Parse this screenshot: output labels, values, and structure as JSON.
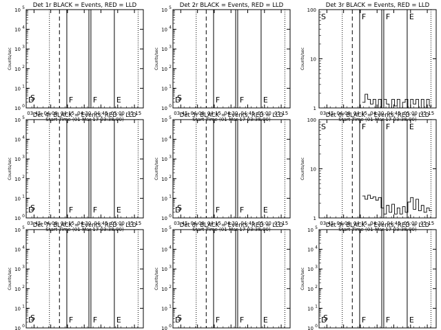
{
  "chart_data": [
    {
      "type": "line",
      "title": "Det 1r BLACK = Events, RED = LLD",
      "xlabel": "Start Time (01-Mar-17 03:38:00)",
      "ylabel": "Counts/sec",
      "scale": "log",
      "yticks": [
        {
          "m": "10",
          "e": "0"
        },
        {
          "m": "10",
          "e": "1"
        },
        {
          "m": "10",
          "e": "2"
        },
        {
          "m": "10",
          "e": "3"
        },
        {
          "m": "10",
          "e": "4"
        },
        {
          "m": "10",
          "e": "5"
        }
      ],
      "xticks": [
        "03:45",
        "04:00",
        "04:15",
        "04:30",
        "04:45",
        "05:00",
        "05:15"
      ],
      "region_labels": [
        "D",
        "F",
        "F",
        "E"
      ],
      "second_label": "S",
      "series": []
    },
    {
      "type": "line",
      "title": "Det 2r BLACK = Events, RED = LLD",
      "xlabel": "Start Time (01-Mar-17 03:38:00)",
      "ylabel": "Counts/sec",
      "scale": "log",
      "yticks": [
        {
          "m": "10",
          "e": "0"
        },
        {
          "m": "10",
          "e": "1"
        },
        {
          "m": "10",
          "e": "2"
        },
        {
          "m": "10",
          "e": "3"
        },
        {
          "m": "10",
          "e": "4"
        },
        {
          "m": "10",
          "e": "5"
        }
      ],
      "xticks": [
        "03:45",
        "04:00",
        "04:15",
        "04:30",
        "04:45",
        "05:00",
        "05:15"
      ],
      "region_labels": [
        "D",
        "F",
        "F",
        "E"
      ],
      "second_label": "S",
      "series": []
    },
    {
      "type": "line",
      "title": "Det 3r BLACK = Events, RED = LLD",
      "xlabel": "Start Time (01-Mar-17 03:38:00)",
      "ylabel": "Counts/sec",
      "scale": "log",
      "yticks": [
        {
          "m": "1",
          "e": ""
        },
        {
          "m": "10",
          "e": ""
        },
        {
          "m": "100",
          "e": ""
        }
      ],
      "xticks": [
        "03:45",
        "04:00",
        "04:15",
        "04:30",
        "04:45",
        "05:00",
        "05:15"
      ],
      "region_labels": [
        "S",
        "F",
        "F",
        "E"
      ],
      "second_label": "",
      "series": [
        {
          "x": [
            4.28,
            4.32,
            4.36,
            4.4,
            4.44,
            4.48,
            4.52,
            4.56,
            4.6,
            4.64,
            4.68,
            4.72,
            4.76,
            4.8,
            4.84,
            4.88,
            4.92,
            4.96,
            5.0,
            5.04,
            5.08,
            5.12,
            5.16,
            5.2,
            5.24,
            5.28
          ],
          "y": [
            1.3,
            1.9,
            1.5,
            1.2,
            1.5,
            1.0,
            1.5,
            1.0,
            1.5,
            1.2,
            1.0,
            1.5,
            1.1,
            1.5,
            1.0,
            1.3,
            1.5,
            1.0,
            1.5,
            1.2,
            1.5,
            1.0,
            1.5,
            1.0,
            1.5,
            1.1
          ]
        }
      ]
    },
    {
      "type": "line",
      "title": "Det 4r BLACK = Events, RED = LLD",
      "xlabel": "Start Time (01-Mar-17 03:38:00)",
      "ylabel": "Counts/sec",
      "scale": "log",
      "yticks": [
        {
          "m": "10",
          "e": "0"
        },
        {
          "m": "10",
          "e": "1"
        },
        {
          "m": "10",
          "e": "2"
        },
        {
          "m": "10",
          "e": "3"
        },
        {
          "m": "10",
          "e": "4"
        },
        {
          "m": "10",
          "e": "5"
        }
      ],
      "xticks": [
        "03:45",
        "04:00",
        "04:15",
        "04:30",
        "04:45",
        "05:00",
        "05:15"
      ],
      "region_labels": [
        "D",
        "F",
        "F",
        "E"
      ],
      "second_label": "S",
      "series": []
    },
    {
      "type": "line",
      "title": "Det 5r BLACK = Events, RED = LLD",
      "xlabel": "Start Time (01-Mar-17 03:38:00)",
      "ylabel": "Counts/sec",
      "scale": "log",
      "yticks": [
        {
          "m": "10",
          "e": "0"
        },
        {
          "m": "10",
          "e": "1"
        },
        {
          "m": "10",
          "e": "2"
        },
        {
          "m": "10",
          "e": "3"
        },
        {
          "m": "10",
          "e": "4"
        },
        {
          "m": "10",
          "e": "5"
        }
      ],
      "xticks": [
        "03:45",
        "04:00",
        "04:15",
        "04:30",
        "04:45",
        "05:00",
        "05:15"
      ],
      "region_labels": [
        "D",
        "F",
        "F",
        "E"
      ],
      "second_label": "S",
      "series": []
    },
    {
      "type": "line",
      "title": "Det 6r BLACK = Events, RED = LLD",
      "xlabel": "Start Time (01-Mar-17 03:38:00)",
      "ylabel": "Counts/sec",
      "scale": "log",
      "yticks": [
        {
          "m": "1",
          "e": ""
        },
        {
          "m": "10",
          "e": ""
        },
        {
          "m": "100",
          "e": ""
        }
      ],
      "xticks": [
        "03:45",
        "04:00",
        "04:15",
        "04:30",
        "04:45",
        "05:00",
        "05:15"
      ],
      "region_labels": [
        "S",
        "F",
        "F",
        "E"
      ],
      "second_label": "",
      "series": [
        {
          "x": [
            4.28,
            4.32,
            4.36,
            4.4,
            4.44,
            4.48,
            4.52,
            4.56,
            4.6,
            4.64,
            4.68,
            4.72,
            4.76,
            4.8,
            4.84,
            4.88,
            4.92,
            4.96,
            5.0,
            5.04,
            5.08,
            5.12,
            5.16,
            5.2,
            5.24,
            5.28
          ],
          "y": [
            2.8,
            2.4,
            2.9,
            2.5,
            2.7,
            2.3,
            2.6,
            1.6,
            1.2,
            1.8,
            1.3,
            1.9,
            1.2,
            1.6,
            1.2,
            1.7,
            1.3,
            2.1,
            2.6,
            1.5,
            2.4,
            1.4,
            1.8,
            1.3,
            1.6,
            1.4
          ]
        }
      ]
    },
    {
      "type": "line",
      "title": "Det 7r BLACK = Events, RED = LLD",
      "xlabel": "Start Time (01-Mar-17 03:38:00)",
      "ylabel": "Counts/sec",
      "scale": "log",
      "yticks": [
        {
          "m": "10",
          "e": "0"
        },
        {
          "m": "10",
          "e": "1"
        },
        {
          "m": "10",
          "e": "2"
        },
        {
          "m": "10",
          "e": "3"
        },
        {
          "m": "10",
          "e": "4"
        },
        {
          "m": "10",
          "e": "5"
        }
      ],
      "xticks": [
        "03:45",
        "04:00",
        "04:15",
        "04:30",
        "04:45",
        "05:00",
        "05:15"
      ],
      "region_labels": [
        "D",
        "F",
        "F",
        "E"
      ],
      "second_label": "S",
      "series": []
    },
    {
      "type": "line",
      "title": "Det 8r BLACK = Events, RED = LLD",
      "xlabel": "Start Time (01-Mar-17 03:38:00)",
      "ylabel": "Counts/sec",
      "scale": "log",
      "yticks": [
        {
          "m": "10",
          "e": "0"
        },
        {
          "m": "10",
          "e": "1"
        },
        {
          "m": "10",
          "e": "2"
        },
        {
          "m": "10",
          "e": "3"
        },
        {
          "m": "10",
          "e": "4"
        },
        {
          "m": "10",
          "e": "5"
        }
      ],
      "xticks": [
        "03:45",
        "04:00",
        "04:15",
        "04:30",
        "04:45",
        "05:00",
        "05:15"
      ],
      "region_labels": [
        "D",
        "F",
        "F",
        "E"
      ],
      "second_label": "S",
      "series": []
    },
    {
      "type": "line",
      "title": "Det 9r BLACK = Events, RED = LLD",
      "xlabel": "Start Time (01-Mar-17 03:38:00)",
      "ylabel": "Counts/sec",
      "scale": "log",
      "yticks": [
        {
          "m": "10",
          "e": "0"
        },
        {
          "m": "10",
          "e": "1"
        },
        {
          "m": "10",
          "e": "2"
        },
        {
          "m": "10",
          "e": "3"
        },
        {
          "m": "10",
          "e": "4"
        },
        {
          "m": "10",
          "e": "5"
        }
      ],
      "xticks": [
        "03:45",
        "04:00",
        "04:15",
        "04:30",
        "04:45",
        "05:00",
        "05:15"
      ],
      "region_labels": [
        "D",
        "F",
        "F",
        "E"
      ],
      "second_label": "S",
      "series": []
    }
  ]
}
